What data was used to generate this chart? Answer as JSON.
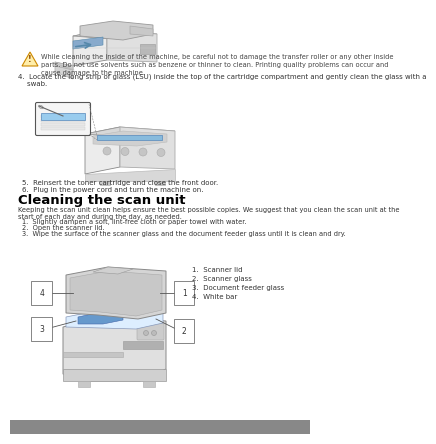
{
  "bg_color": "#ffffff",
  "warning_text": "While cleaning the inside of the machine, be careful not to damage the transfer roller or any other inside\nparts. Do not use solvents such as benzene or thinner to clean. Printing quality problems can occur and\ncause damage to the machine.",
  "step4_text": "4.  Locate the long strip of glass (LSU) inside the top of the cartridge compartment and gently clean the glass with a\n    swab.",
  "step5_text": "5.  Reinsert the toner cartridge and close the front door.",
  "step6_text": "6.  Plug in the power cord and turn the machine on.",
  "section_title": "Cleaning the scan unit",
  "section_body": "Keeping the scan unit clean helps ensure the best possible copies. We suggest that you clean the scan unit at the\nstart of each day and during the day, as needed.",
  "sub1": "1.  Slightly dampen a soft, lint-free cloth or paper towel with water.",
  "sub2": "2.  Open the scanner lid.",
  "sub3": "3.  Wipe the surface of the scanner glass and the document feeder glass until it is clean and dry.",
  "legend1": "1.  Scanner lid",
  "legend2": "2.  Scanner glass",
  "legend3": "3.  Document feeder glass",
  "legend4": "4.  White bar",
  "text_color": "#333333",
  "title_color": "#000000",
  "body_fs": 5.5,
  "title_fs": 9.5,
  "bottom_bar_color": "#888888"
}
